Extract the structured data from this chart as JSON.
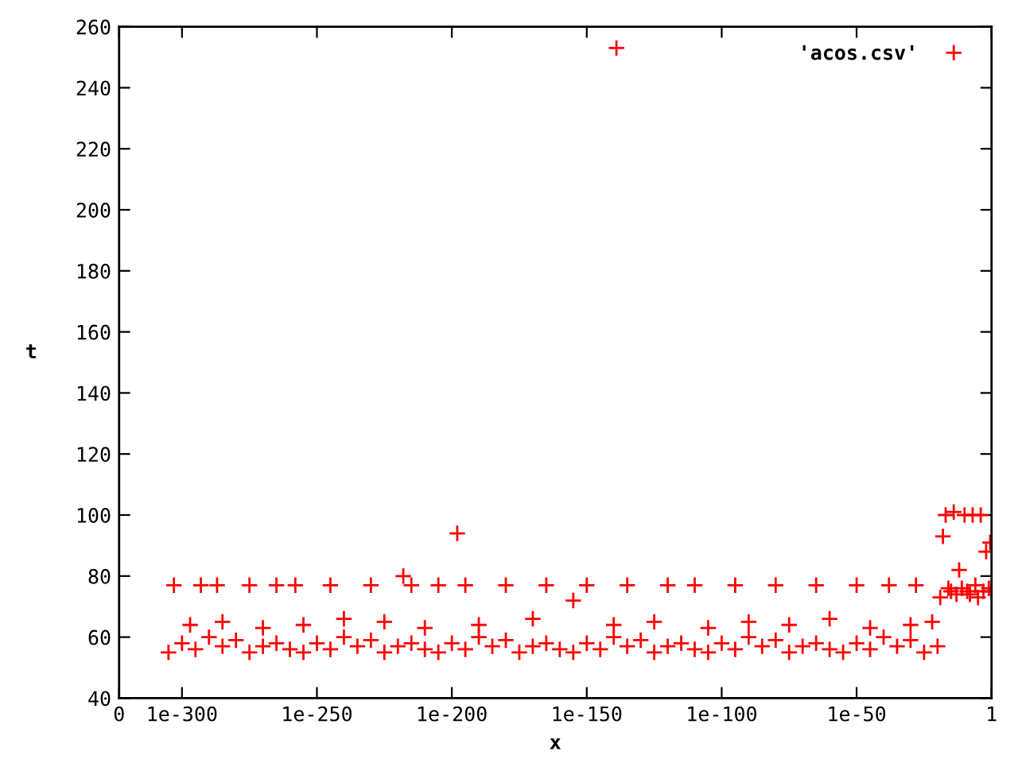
{
  "chart_data": {
    "type": "scatter",
    "xlabel": "x",
    "ylabel": "t",
    "log": "x",
    "marker": "cross",
    "legend": "top right",
    "grid": false,
    "xlim": [
      0,
      1
    ],
    "xticks": [
      0,
      1e-300,
      1e-250,
      1e-200,
      1e-150,
      1e-100,
      1e-50,
      1
    ],
    "ylim": [
      40,
      260
    ],
    "yticks": [
      40,
      60,
      80,
      100,
      120,
      140,
      160,
      180,
      200,
      220,
      240,
      260
    ],
    "series": [
      {
        "name": "'acos.csv'",
        "color": "#ff0000",
        "x": [
          1e-305,
          1e-300,
          1e-295,
          1e-290,
          1e-285,
          1e-280,
          1e-275,
          1e-270,
          1e-265,
          1e-260,
          1e-255,
          1e-250,
          1e-245,
          1e-240,
          1e-235,
          1e-230,
          1e-225,
          1e-220,
          1e-215,
          1e-210,
          1e-205,
          1e-200,
          1e-195,
          1e-190,
          1e-185,
          1e-180,
          1e-175,
          1e-170,
          1e-165,
          1e-160,
          1e-155,
          1e-150,
          1e-145,
          1e-140,
          1e-135,
          1e-130,
          1e-125,
          1e-120,
          1e-115,
          1e-110,
          1e-105,
          1e-100,
          1e-95,
          1e-90,
          1e-85,
          1e-80,
          1e-75,
          1e-70,
          1e-65,
          1e-60,
          1e-55,
          1e-50,
          1e-45,
          1e-40,
          1e-35,
          1e-30,
          1e-25,
          1e-20,
          1e-303,
          1e-293,
          1e-287,
          1e-275,
          1e-265,
          1e-258,
          1e-245,
          1e-230,
          1e-215,
          1e-205,
          1e-195,
          1e-180,
          1e-165,
          1e-150,
          1e-135,
          1e-120,
          1e-110,
          1e-95,
          1e-80,
          1e-65,
          1e-50,
          1e-38,
          1e-28,
          1e-297,
          1e-285,
          1e-270,
          1e-255,
          1e-240,
          1e-225,
          1e-210,
          1e-190,
          1e-170,
          1e-155,
          1e-140,
          1e-125,
          1e-105,
          1e-90,
          1e-75,
          1e-60,
          1e-45,
          1e-30,
          1e-22,
          1e-198,
          1e-218,
          1e-139,
          1e-19,
          1e-18,
          1e-17,
          1e-16,
          1e-15,
          1e-14,
          1e-13,
          1e-12,
          1e-11,
          1e-10,
          1e-09,
          1e-08,
          1e-07,
          1e-06,
          1e-05,
          0.0001,
          0.001,
          0.01,
          0.1,
          0.3,
          1
        ],
        "values": [
          55,
          58,
          56,
          60,
          57,
          59,
          55,
          57,
          58,
          56,
          55,
          58,
          56,
          60,
          57,
          59,
          55,
          57,
          58,
          56,
          55,
          58,
          56,
          60,
          57,
          59,
          55,
          57,
          58,
          56,
          55,
          58,
          56,
          60,
          57,
          59,
          55,
          57,
          58,
          56,
          55,
          58,
          56,
          60,
          57,
          59,
          55,
          57,
          58,
          56,
          55,
          58,
          56,
          60,
          57,
          59,
          55,
          57,
          77,
          77,
          77,
          77,
          77,
          77,
          77,
          77,
          77,
          77,
          77,
          77,
          77,
          77,
          77,
          77,
          77,
          77,
          77,
          77,
          77,
          77,
          77,
          64,
          65,
          63,
          64,
          66,
          65,
          63,
          64,
          66,
          72,
          64,
          65,
          63,
          65,
          64,
          66,
          63,
          64,
          65,
          94,
          80,
          253,
          73,
          93,
          100,
          76,
          75,
          101,
          74,
          82,
          76,
          100,
          75,
          74,
          100,
          77,
          73,
          100,
          75,
          88,
          76,
          91,
          75
        ]
      }
    ]
  }
}
